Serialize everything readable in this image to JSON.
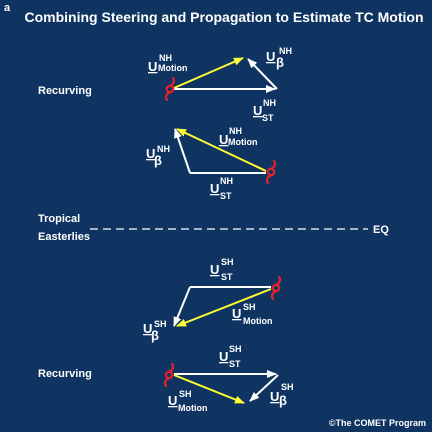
{
  "panel_letter": "a",
  "title": "Combining Steering and Propagation to Estimate TC Motion",
  "colors": {
    "background": "#0f3461",
    "steering_arrow": "#ffffff",
    "beta_arrow": "#ffffff",
    "motion_arrow": "#ffff33",
    "cyclone_symbol": "#e8202a"
  },
  "icons": [
    "cyclone-symbol-icon"
  ],
  "equator": {
    "left_label_line1": "Tropical",
    "left_label_line2": "Easterlies",
    "right_label": "EQ"
  },
  "triangles": [
    {
      "side_label": "Recurving",
      "motion": {
        "main": "U",
        "sup": "NH",
        "sub": "Motion"
      },
      "beta": {
        "main": "U",
        "sup": "NH",
        "sub": "β"
      },
      "steering": {
        "main": "U",
        "sup": "NH",
        "sub": "ST"
      }
    },
    {
      "side_label": "",
      "motion": {
        "main": "U",
        "sup": "NH",
        "sub": "Motion"
      },
      "beta": {
        "main": "U",
        "sup": "NH",
        "sub": "β"
      },
      "steering": {
        "main": "U",
        "sup": "NH",
        "sub": "ST"
      }
    },
    {
      "side_label": "",
      "motion": {
        "main": "U",
        "sup": "SH",
        "sub": "Motion"
      },
      "beta": {
        "main": "U",
        "sup": "SH",
        "sub": "β"
      },
      "steering": {
        "main": "U",
        "sup": "SH",
        "sub": "ST"
      }
    },
    {
      "side_label": "Recurving",
      "motion": {
        "main": "U",
        "sup": "SH",
        "sub": "Motion"
      },
      "beta": {
        "main": "U",
        "sup": "SH",
        "sub": "β"
      },
      "steering": {
        "main": "U",
        "sup": "SH",
        "sub": "ST"
      }
    }
  ],
  "credit": "©The COMET Program"
}
